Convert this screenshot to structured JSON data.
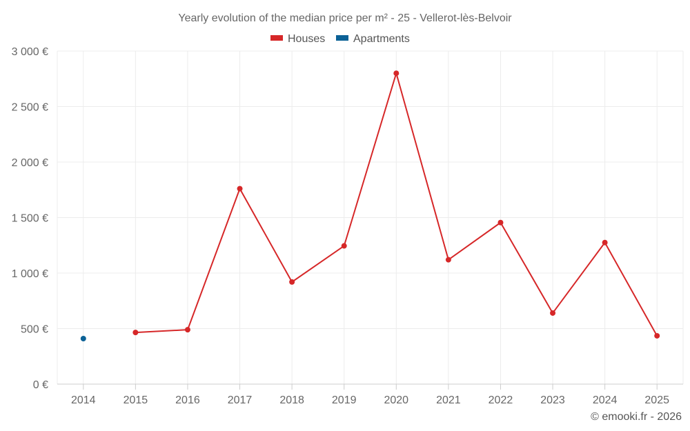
{
  "chart_data": {
    "type": "line",
    "title": "Yearly evolution of the median price per m² - 25 - Vellerot-lès-Belvoir",
    "categories": [
      "2014",
      "2015",
      "2016",
      "2017",
      "2018",
      "2019",
      "2020",
      "2021",
      "2022",
      "2023",
      "2024",
      "2025"
    ],
    "series": [
      {
        "name": "Houses",
        "color": "#d62728",
        "values": [
          null,
          465,
          490,
          1760,
          920,
          1245,
          2800,
          1120,
          1455,
          640,
          1275,
          435
        ]
      },
      {
        "name": "Apartments",
        "color": "#0b6196",
        "values": [
          410,
          null,
          null,
          null,
          null,
          null,
          null,
          null,
          null,
          null,
          null,
          null
        ]
      }
    ],
    "ylim": [
      0,
      3000
    ],
    "yticks": [
      0,
      500,
      1000,
      1500,
      2000,
      2500,
      3000
    ],
    "ytick_labels": [
      "0 €",
      "500 €",
      "1 000 €",
      "1 500 €",
      "2 000 €",
      "2 500 €",
      "3 000 €"
    ],
    "xlabel": "",
    "ylabel": "",
    "grid": true,
    "legend_position": "top-center"
  },
  "credit": "© emooki.fr - 2026"
}
